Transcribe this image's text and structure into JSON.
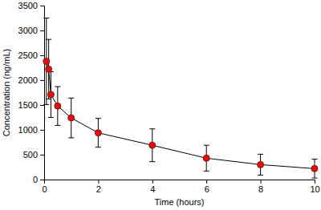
{
  "chart_data": {
    "type": "line",
    "x_label": "Time (hours)",
    "y_label": "Concentration (ng/mL)",
    "x": [
      0.083,
      0.167,
      0.25,
      0.5,
      1,
      2,
      4,
      6,
      8,
      10
    ],
    "series": [
      {
        "color": "#e01010",
        "marker": "circle",
        "line_style": "solid",
        "values": [
          2380,
          2220,
          1710,
          1480,
          1240,
          940,
          690,
          430,
          300,
          220
        ],
        "errors": [
          870,
          600,
          460,
          390,
          400,
          290,
          330,
          260,
          210,
          190
        ]
      }
    ],
    "xlim": [
      0,
      10
    ],
    "xticks": [
      0,
      2,
      4,
      6,
      8,
      10
    ],
    "ylim": [
      0,
      3500
    ],
    "yticks": [
      0,
      500,
      1000,
      1500,
      2000,
      2500,
      3000,
      3500
    ],
    "grid": false
  }
}
